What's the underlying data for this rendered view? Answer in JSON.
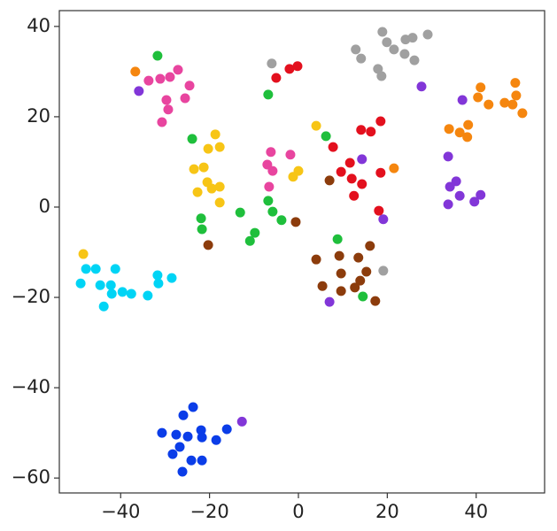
{
  "chart_data": {
    "type": "scatter",
    "xlim": [
      -53.8,
      55.4
    ],
    "ylim": [
      -63.3,
      43.5
    ],
    "xticks": [
      {
        "value": -40,
        "label": "−40"
      },
      {
        "value": -20,
        "label": "−20"
      },
      0,
      20,
      40
    ],
    "yticks": [
      {
        "value": -60,
        "label": "−60"
      },
      {
        "value": -40,
        "label": "−40"
      },
      {
        "value": -20,
        "label": "−20"
      },
      0,
      20,
      40
    ],
    "series": [
      {
        "color": "#00d4f5",
        "x": [
          -47.8,
          -45.6,
          -49,
          -44.6,
          -42.2,
          -41.2,
          -39.6,
          -37.6,
          -42,
          -43.8,
          -33.9,
          -31.7,
          -31.5,
          -28.5
        ],
        "values": [
          -13.7,
          -13.7,
          -16.9,
          -17.3,
          -17.3,
          -13.7,
          -18.8,
          -19.2,
          -19.2,
          -22,
          -19.6,
          -15.1,
          -16.9,
          -15.7
        ]
      },
      {
        "color": "#0b3de8",
        "x": [
          -23.7,
          -25.9,
          -30.7,
          -27.5,
          -24.9,
          -21.9,
          -21.7,
          -18.5,
          -16.1,
          -28.3,
          -26.7,
          -24.1,
          -21.7,
          -26.1
        ],
        "values": [
          -44.3,
          -46.1,
          -50,
          -50.4,
          -50.8,
          -49.4,
          -51,
          -51.6,
          -49.2,
          -54.7,
          -53.1,
          -56.1,
          -56.1,
          -58.6
        ]
      },
      {
        "color": "#8236d8",
        "x": [
          -35.9,
          -12.7,
          36.9,
          27.7,
          33.7,
          34.1,
          35.5,
          36.3,
          33.7,
          39.6,
          41,
          14.3,
          19.1,
          7
        ],
        "values": [
          25.7,
          -47.5,
          23.7,
          26.7,
          11.2,
          4.5,
          5.7,
          2.5,
          0.6,
          1.2,
          2.7,
          10.6,
          -2.7,
          -21
        ]
      },
      {
        "color": "#f5860f",
        "x": [
          -36.7,
          48.8,
          49,
          50.4,
          48.2,
          46.4,
          42.8,
          41,
          40.4,
          38.2,
          36.3,
          38,
          33.9,
          21.5
        ],
        "values": [
          30,
          27.5,
          24.7,
          20.8,
          22.7,
          23.1,
          22.7,
          26.5,
          24.3,
          18.2,
          16.5,
          15.5,
          17.3,
          8.6
        ]
      },
      {
        "color": "#a0a0a0",
        "x": [
          18.9,
          19.9,
          24.1,
          25.7,
          29.1,
          21.5,
          12.9,
          14.1,
          23.9,
          26.1,
          17.9,
          18.7,
          -6,
          19.1
        ],
        "values": [
          38.8,
          36.5,
          37.1,
          37.5,
          38.2,
          34.9,
          34.9,
          32.9,
          33.9,
          32.5,
          30.6,
          29,
          31.8,
          -14.1
        ]
      },
      {
        "color": "#e8459f",
        "x": [
          -33.7,
          -31.1,
          -28.9,
          -27.1,
          -24.5,
          -29.7,
          -29.3,
          -30.7,
          -25.5,
          -6.2,
          -1.8,
          -7,
          -5.8,
          -6.6
        ],
        "values": [
          28,
          28.4,
          28.8,
          30.4,
          26.9,
          23.7,
          21.6,
          18.8,
          24.1,
          12.2,
          11.6,
          9.4,
          8,
          4.5
        ]
      },
      {
        "color": "#1fbf3c",
        "x": [
          -31.7,
          -6.8,
          -23.9,
          6.2,
          -6.8,
          -5.8,
          -3.8,
          -13.1,
          -9.8,
          -10.9,
          -21.9,
          -21.7,
          8.8,
          14.5
        ],
        "values": [
          33.5,
          24.9,
          15.1,
          15.7,
          1.4,
          -1,
          -2.9,
          -1.2,
          -5.7,
          -7.5,
          -2.5,
          -4.9,
          -7.1,
          -19.8
        ]
      },
      {
        "color": "#f7c516",
        "x": [
          -48.4,
          -18.7,
          -17.7,
          -20.3,
          -23.5,
          -21.3,
          -22.7,
          -20.5,
          -19.5,
          -17.7,
          -17.7,
          4,
          0,
          -1.2
        ],
        "values": [
          -10.4,
          16.1,
          13.3,
          12.9,
          8.4,
          8.8,
          3.3,
          5.5,
          4.1,
          4.5,
          1,
          18,
          8,
          6.7
        ]
      },
      {
        "color": "#e3101e",
        "x": [
          -5,
          -2,
          -0.2,
          7.8,
          9.6,
          11.6,
          12,
          12.5,
          14.3,
          14.1,
          16.3,
          18.5,
          18.5,
          18.1
        ],
        "values": [
          28.6,
          30.6,
          31.2,
          13.3,
          7.8,
          9.8,
          6.3,
          2.5,
          5.1,
          17.1,
          16.7,
          19,
          7.6,
          -0.8
        ]
      },
      {
        "color": "#8c3c0c",
        "x": [
          -20.3,
          -0.6,
          7,
          4,
          5.4,
          9.2,
          13.5,
          16.1,
          9.6,
          15.3,
          13.9,
          12.7,
          9.6,
          17.3
        ],
        "values": [
          -8.4,
          -3.3,
          5.9,
          -11.6,
          -17.5,
          -10.8,
          -11.2,
          -8.6,
          -14.7,
          -14.3,
          -16.3,
          -17.8,
          -18.6,
          -20.8
        ]
      }
    ]
  }
}
